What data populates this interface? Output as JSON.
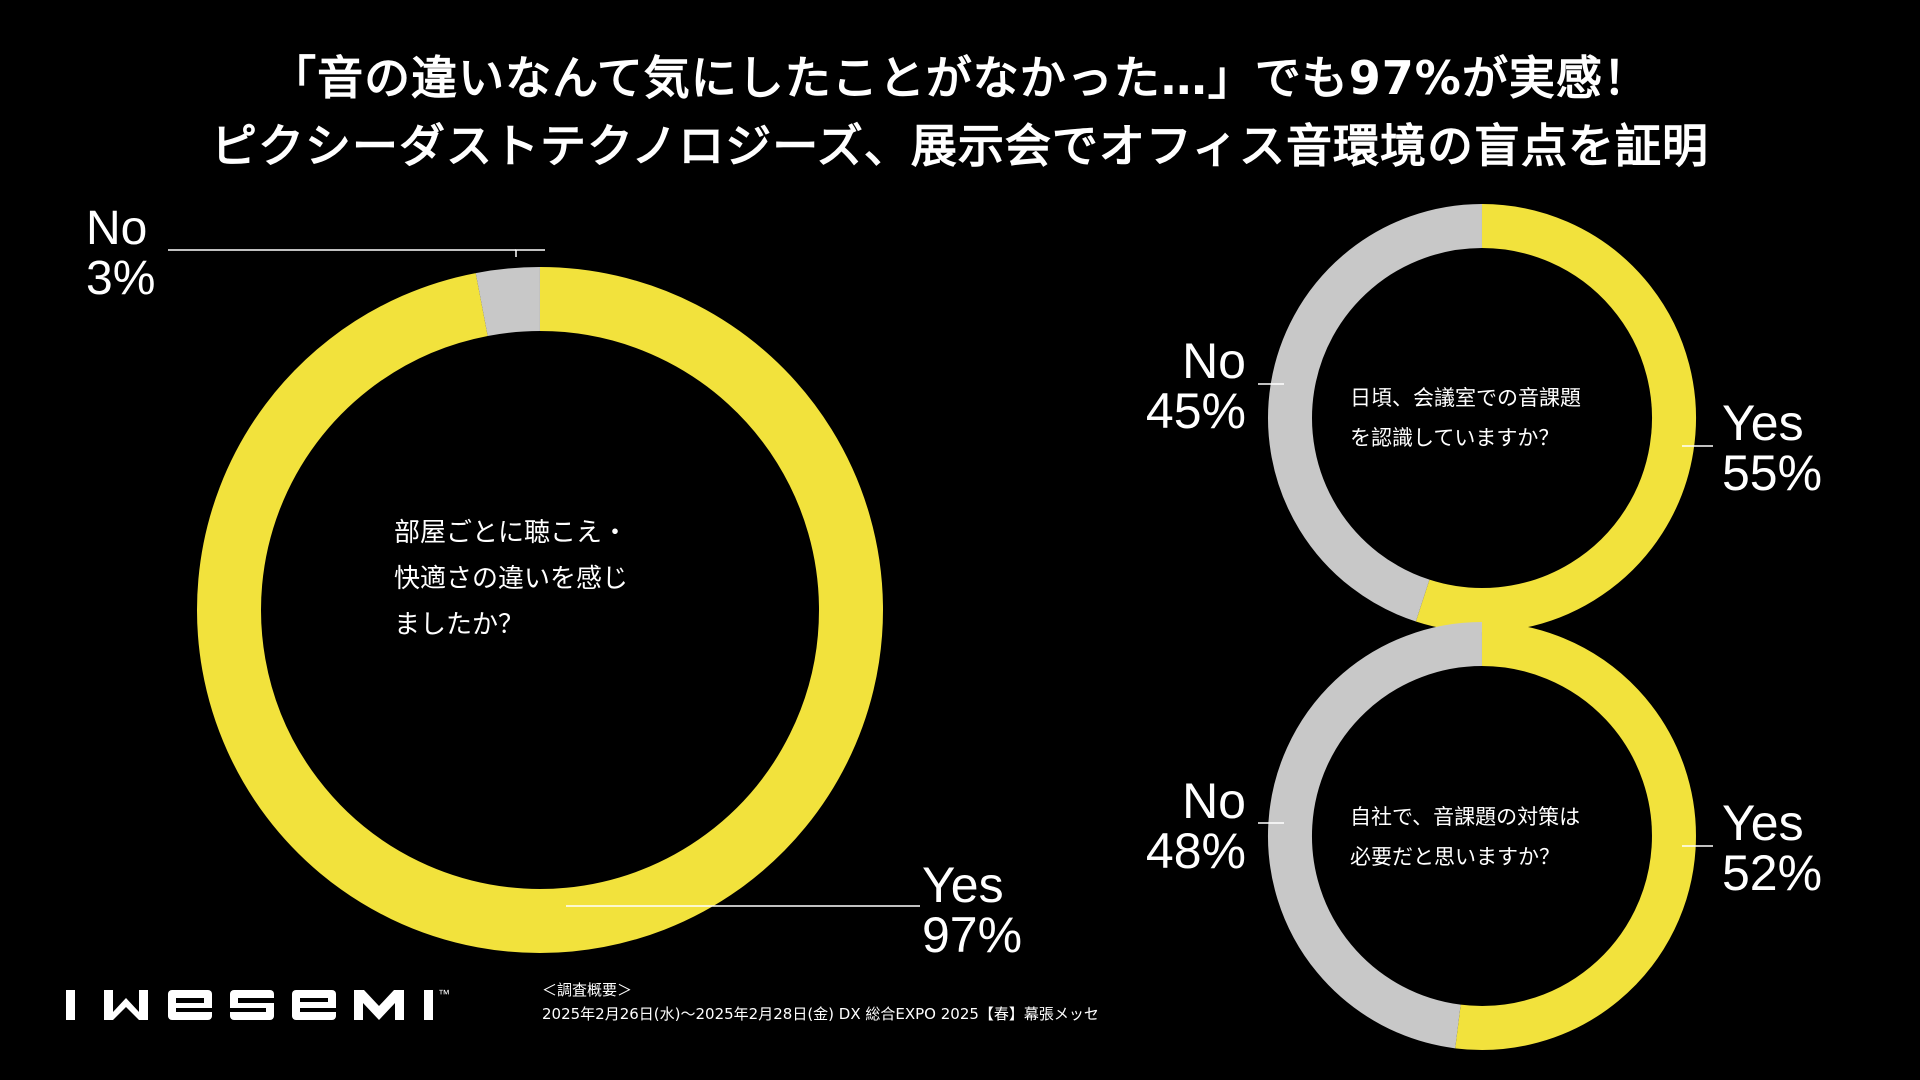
{
  "title": {
    "line1": "「音の違いなんて気にしたことがなかった…」でも97%が実感！",
    "line2": "ピクシーダストテクノロジーズ、展示会でオフィス音環境の盲点を証明"
  },
  "colors": {
    "yes": "#f2e23c",
    "no": "#c8c8c8",
    "background": "#000000"
  },
  "chart_data": [
    {
      "type": "pie",
      "question_lines": [
        "部屋ごとに聴こえ・",
        "快適さの違いを感じ",
        "ましたか？"
      ],
      "categories": [
        "Yes",
        "No"
      ],
      "values": [
        97,
        3
      ],
      "labels": {
        "yes_name": "Yes",
        "yes_pct": "97%",
        "no_name": "No",
        "no_pct": "3%"
      }
    },
    {
      "type": "pie",
      "question_lines": [
        "日頃、会議室での音課題",
        "を認識していますか？"
      ],
      "categories": [
        "Yes",
        "No"
      ],
      "values": [
        55,
        45
      ],
      "labels": {
        "yes_name": "Yes",
        "yes_pct": "55%",
        "no_name": "No",
        "no_pct": "45%"
      }
    },
    {
      "type": "pie",
      "question_lines": [
        "自社で、音課題の対策は",
        "必要だと思いますか？"
      ],
      "categories": [
        "Yes",
        "No"
      ],
      "values": [
        52,
        48
      ],
      "labels": {
        "yes_name": "Yes",
        "yes_pct": "52%",
        "no_name": "No",
        "no_pct": "48%"
      }
    }
  ],
  "footer": {
    "logo_text": "IWaSeMI",
    "trademark": "™",
    "survey_heading": "＜調査概要＞",
    "survey_detail": "2025年2月26日(水)〜2025年2月28日(金) DX 総合EXPO 2025【春】幕張メッセ"
  }
}
